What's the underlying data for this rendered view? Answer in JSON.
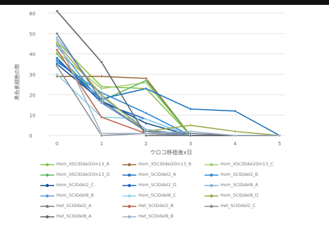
{
  "chart_data": {
    "type": "line",
    "title": "",
    "xlabel": "ウロコ移植後x日",
    "ylabel": "黒色素細胞の数",
    "x": [
      0,
      1,
      2,
      3,
      4,
      5
    ],
    "ylim": [
      0,
      60
    ],
    "yticks": [
      0,
      10,
      20,
      30,
      40,
      50,
      60
    ],
    "grid": "horizontal",
    "legend_position": "bottom",
    "series": [
      {
        "name": "Hom_XSCIDdel20in13_A",
        "color": "#8bc34a",
        "values": [
          46,
          24,
          23,
          0,
          0,
          0
        ]
      },
      {
        "name": "Hom_XSCIDdel20in13_B",
        "color": "#9b6b3a",
        "values": [
          29,
          29,
          28,
          0,
          0,
          0
        ]
      },
      {
        "name": "Hom_XSCIDdel20in13_C",
        "color": "#a8cf6f",
        "values": [
          41,
          23,
          26,
          0,
          0,
          0
        ]
      },
      {
        "name": "Hom_XSCIDdel20in13_D",
        "color": "#5cb85c",
        "values": [
          40,
          17,
          27,
          0,
          0,
          0
        ]
      },
      {
        "name": "Hom_SCIDdel2_A",
        "color": "#1e73be",
        "values": [
          37,
          18,
          23,
          13,
          12,
          0
        ]
      },
      {
        "name": "Hom_SCIDdel2_B",
        "color": "#2b8ad6",
        "values": [
          36,
          21,
          11,
          0,
          0,
          0
        ]
      },
      {
        "name": "Hom_SCIDdel2_C",
        "color": "#0d4d8c",
        "values": [
          35,
          17,
          6,
          0,
          0,
          0
        ]
      },
      {
        "name": "Hom_SCIDdel2_D",
        "color": "#1565c0",
        "values": [
          38,
          16,
          8,
          0,
          0,
          0
        ]
      },
      {
        "name": "Hom_SCIDdel8_A",
        "color": "#7bb3e0",
        "values": [
          48,
          19,
          3,
          0,
          0,
          0
        ]
      },
      {
        "name": "Hom_SCIDdel8_B",
        "color": "#5b9bd5",
        "values": [
          44,
          16,
          2,
          0,
          0,
          0
        ]
      },
      {
        "name": "Hom_SCIDdel8_C",
        "color": "#8fd0e8",
        "values": [
          30,
          9,
          8,
          0,
          0,
          0
        ]
      },
      {
        "name": "Hom_SCIDdel8_D",
        "color": "#9aa84a",
        "values": [
          45,
          20,
          2,
          5,
          2,
          0
        ]
      },
      {
        "name": "Het_SCIDdel2_A",
        "color": "#6e7b8b",
        "values": [
          50,
          17,
          2,
          1,
          0,
          0
        ]
      },
      {
        "name": "Het_SCIDdel2_B",
        "color": "#c0634b",
        "values": [
          42,
          9,
          1,
          0,
          0,
          0
        ]
      },
      {
        "name": "Het_SCIDdel2_C",
        "color": "#8a8f96",
        "values": [
          34,
          0,
          1,
          0,
          0,
          0
        ]
      },
      {
        "name": "Het_SCIDdel8_A",
        "color": "#5d6670",
        "values": [
          61,
          36,
          0,
          0,
          0,
          0
        ]
      },
      {
        "name": "Het_SCIDdel8_B",
        "color": "#9fb3c8",
        "values": [
          47,
          1,
          1,
          2,
          0,
          0
        ]
      }
    ]
  }
}
